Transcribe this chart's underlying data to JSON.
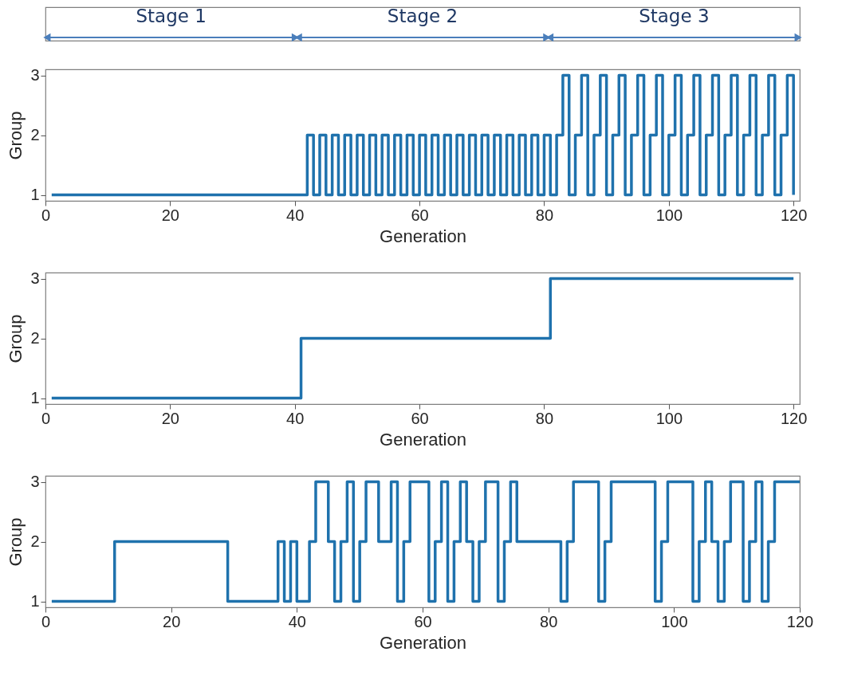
{
  "chart_data": [
    {
      "type": "step",
      "xlabel": "Generation",
      "ylabel": "Group",
      "color": "#1f72ad",
      "grid": false,
      "xlim": [
        0,
        121
      ],
      "xticks": [
        0,
        20,
        40,
        60,
        80,
        100,
        120
      ],
      "ylim": [
        0.9,
        3.1
      ],
      "yticks": [
        1,
        2,
        3
      ],
      "annotations": [
        "Stage 1",
        "Stage 2",
        "Stage 3"
      ],
      "x": [
        1,
        2,
        3,
        4,
        5,
        6,
        7,
        8,
        9,
        10,
        11,
        12,
        13,
        14,
        15,
        16,
        17,
        18,
        19,
        20,
        21,
        22,
        23,
        24,
        25,
        26,
        27,
        28,
        29,
        30,
        31,
        32,
        33,
        34,
        35,
        36,
        37,
        38,
        39,
        40,
        41,
        42,
        43,
        44,
        45,
        46,
        47,
        48,
        49,
        50,
        51,
        52,
        53,
        54,
        55,
        56,
        57,
        58,
        59,
        60,
        61,
        62,
        63,
        64,
        65,
        66,
        67,
        68,
        69,
        70,
        71,
        72,
        73,
        74,
        75,
        76,
        77,
        78,
        79,
        80,
        81,
        82,
        83,
        84,
        85,
        86,
        87,
        88,
        89,
        90,
        91,
        92,
        93,
        94,
        95,
        96,
        97,
        98,
        99,
        100,
        101,
        102,
        103,
        104,
        105,
        106,
        107,
        108,
        109,
        110,
        111,
        112,
        113,
        114,
        115,
        116,
        117,
        118,
        119,
        120
      ],
      "values": [
        1,
        1,
        1,
        1,
        1,
        1,
        1,
        1,
        1,
        1,
        1,
        1,
        1,
        1,
        1,
        1,
        1,
        1,
        1,
        1,
        1,
        1,
        1,
        1,
        1,
        1,
        1,
        1,
        1,
        1,
        1,
        1,
        1,
        1,
        1,
        1,
        1,
        1,
        1,
        1,
        1,
        2,
        1,
        2,
        1,
        2,
        1,
        2,
        1,
        2,
        1,
        2,
        1,
        2,
        1,
        2,
        1,
        2,
        1,
        2,
        1,
        2,
        1,
        2,
        1,
        2,
        1,
        2,
        1,
        2,
        1,
        2,
        1,
        2,
        1,
        2,
        1,
        2,
        1,
        2,
        1,
        2,
        3,
        1,
        2,
        3,
        1,
        2,
        3,
        1,
        2,
        3,
        1,
        2,
        3,
        1,
        2,
        3,
        1,
        2,
        3,
        1,
        2,
        3,
        1,
        2,
        3,
        1,
        2,
        3,
        1,
        2,
        3,
        1,
        2,
        3,
        1,
        2,
        3,
        1
      ]
    },
    {
      "type": "step",
      "xlabel": "Generation",
      "ylabel": "Group",
      "color": "#1f72ad",
      "grid": false,
      "xlim": [
        0,
        121
      ],
      "xticks": [
        0,
        20,
        40,
        60,
        80,
        100,
        120
      ],
      "ylim": [
        0.9,
        3.1
      ],
      "yticks": [
        1,
        2,
        3
      ],
      "x": [
        1,
        2,
        3,
        4,
        5,
        6,
        7,
        8,
        9,
        10,
        11,
        12,
        13,
        14,
        15,
        16,
        17,
        18,
        19,
        20,
        21,
        22,
        23,
        24,
        25,
        26,
        27,
        28,
        29,
        30,
        31,
        32,
        33,
        34,
        35,
        36,
        37,
        38,
        39,
        40,
        41,
        42,
        43,
        44,
        45,
        46,
        47,
        48,
        49,
        50,
        51,
        52,
        53,
        54,
        55,
        56,
        57,
        58,
        59,
        60,
        61,
        62,
        63,
        64,
        65,
        66,
        67,
        68,
        69,
        70,
        71,
        72,
        73,
        74,
        75,
        76,
        77,
        78,
        79,
        80,
        81,
        82,
        83,
        84,
        85,
        86,
        87,
        88,
        89,
        90,
        91,
        92,
        93,
        94,
        95,
        96,
        97,
        98,
        99,
        100,
        101,
        102,
        103,
        104,
        105,
        106,
        107,
        108,
        109,
        110,
        111,
        112,
        113,
        114,
        115,
        116,
        117,
        118,
        119,
        120
      ],
      "values": [
        1,
        1,
        1,
        1,
        1,
        1,
        1,
        1,
        1,
        1,
        1,
        1,
        1,
        1,
        1,
        1,
        1,
        1,
        1,
        1,
        1,
        1,
        1,
        1,
        1,
        1,
        1,
        1,
        1,
        1,
        1,
        1,
        1,
        1,
        1,
        1,
        1,
        1,
        1,
        1,
        2,
        2,
        2,
        2,
        2,
        2,
        2,
        2,
        2,
        2,
        2,
        2,
        2,
        2,
        2,
        2,
        2,
        2,
        2,
        2,
        2,
        2,
        2,
        2,
        2,
        2,
        2,
        2,
        2,
        2,
        2,
        2,
        2,
        2,
        2,
        2,
        2,
        2,
        2,
        2,
        3,
        3,
        3,
        3,
        3,
        3,
        3,
        3,
        3,
        3,
        3,
        3,
        3,
        3,
        3,
        3,
        3,
        3,
        3,
        3,
        3,
        3,
        3,
        3,
        3,
        3,
        3,
        3,
        3,
        3,
        3,
        3,
        3,
        3,
        3,
        3,
        3,
        3,
        3,
        3
      ]
    },
    {
      "type": "step",
      "xlabel": "Generation",
      "ylabel": "Group",
      "color": "#1f72ad",
      "grid": false,
      "xlim": [
        0,
        120
      ],
      "xticks": [
        0,
        20,
        40,
        60,
        80,
        100,
        120
      ],
      "ylim": [
        0.9,
        3.1
      ],
      "yticks": [
        1,
        2,
        3
      ],
      "x": [
        1,
        2,
        3,
        4,
        5,
        6,
        7,
        8,
        9,
        10,
        11,
        12,
        13,
        14,
        15,
        16,
        17,
        18,
        19,
        20,
        21,
        22,
        23,
        24,
        25,
        26,
        27,
        28,
        29,
        30,
        31,
        32,
        33,
        34,
        35,
        36,
        37,
        38,
        39,
        40,
        41,
        42,
        43,
        44,
        45,
        46,
        47,
        48,
        49,
        50,
        51,
        52,
        53,
        54,
        55,
        56,
        57,
        58,
        59,
        60,
        61,
        62,
        63,
        64,
        65,
        66,
        67,
        68,
        69,
        70,
        71,
        72,
        73,
        74,
        75,
        76,
        77,
        78,
        79,
        80,
        81,
        82,
        83,
        84,
        85,
        86,
        87,
        88,
        89,
        90,
        91,
        92,
        93,
        94,
        95,
        96,
        97,
        98,
        99,
        100,
        101,
        102,
        103,
        104,
        105,
        106,
        107,
        108,
        109,
        110,
        111,
        112,
        113,
        114,
        115,
        116,
        117,
        118,
        119,
        120
      ],
      "values": [
        1,
        1,
        1,
        1,
        1,
        1,
        1,
        1,
        1,
        1,
        2,
        2,
        2,
        2,
        2,
        2,
        2,
        2,
        2,
        2,
        2,
        2,
        2,
        2,
        2,
        2,
        2,
        2,
        1,
        1,
        1,
        1,
        1,
        1,
        1,
        1,
        2,
        1,
        2,
        1,
        1,
        2,
        3,
        3,
        2,
        1,
        2,
        3,
        1,
        2,
        3,
        3,
        2,
        2,
        3,
        1,
        2,
        3,
        3,
        3,
        1,
        2,
        3,
        1,
        2,
        3,
        2,
        1,
        2,
        3,
        3,
        1,
        2,
        3,
        2,
        2,
        2,
        2,
        2,
        2,
        2,
        1,
        2,
        3,
        3,
        3,
        3,
        1,
        2,
        3,
        3,
        3,
        3,
        3,
        3,
        3,
        1,
        2,
        3,
        3,
        3,
        3,
        1,
        2,
        3,
        2,
        1,
        2,
        3,
        3,
        1,
        2,
        3,
        1,
        2,
        3,
        3,
        3,
        3,
        3
      ]
    }
  ]
}
